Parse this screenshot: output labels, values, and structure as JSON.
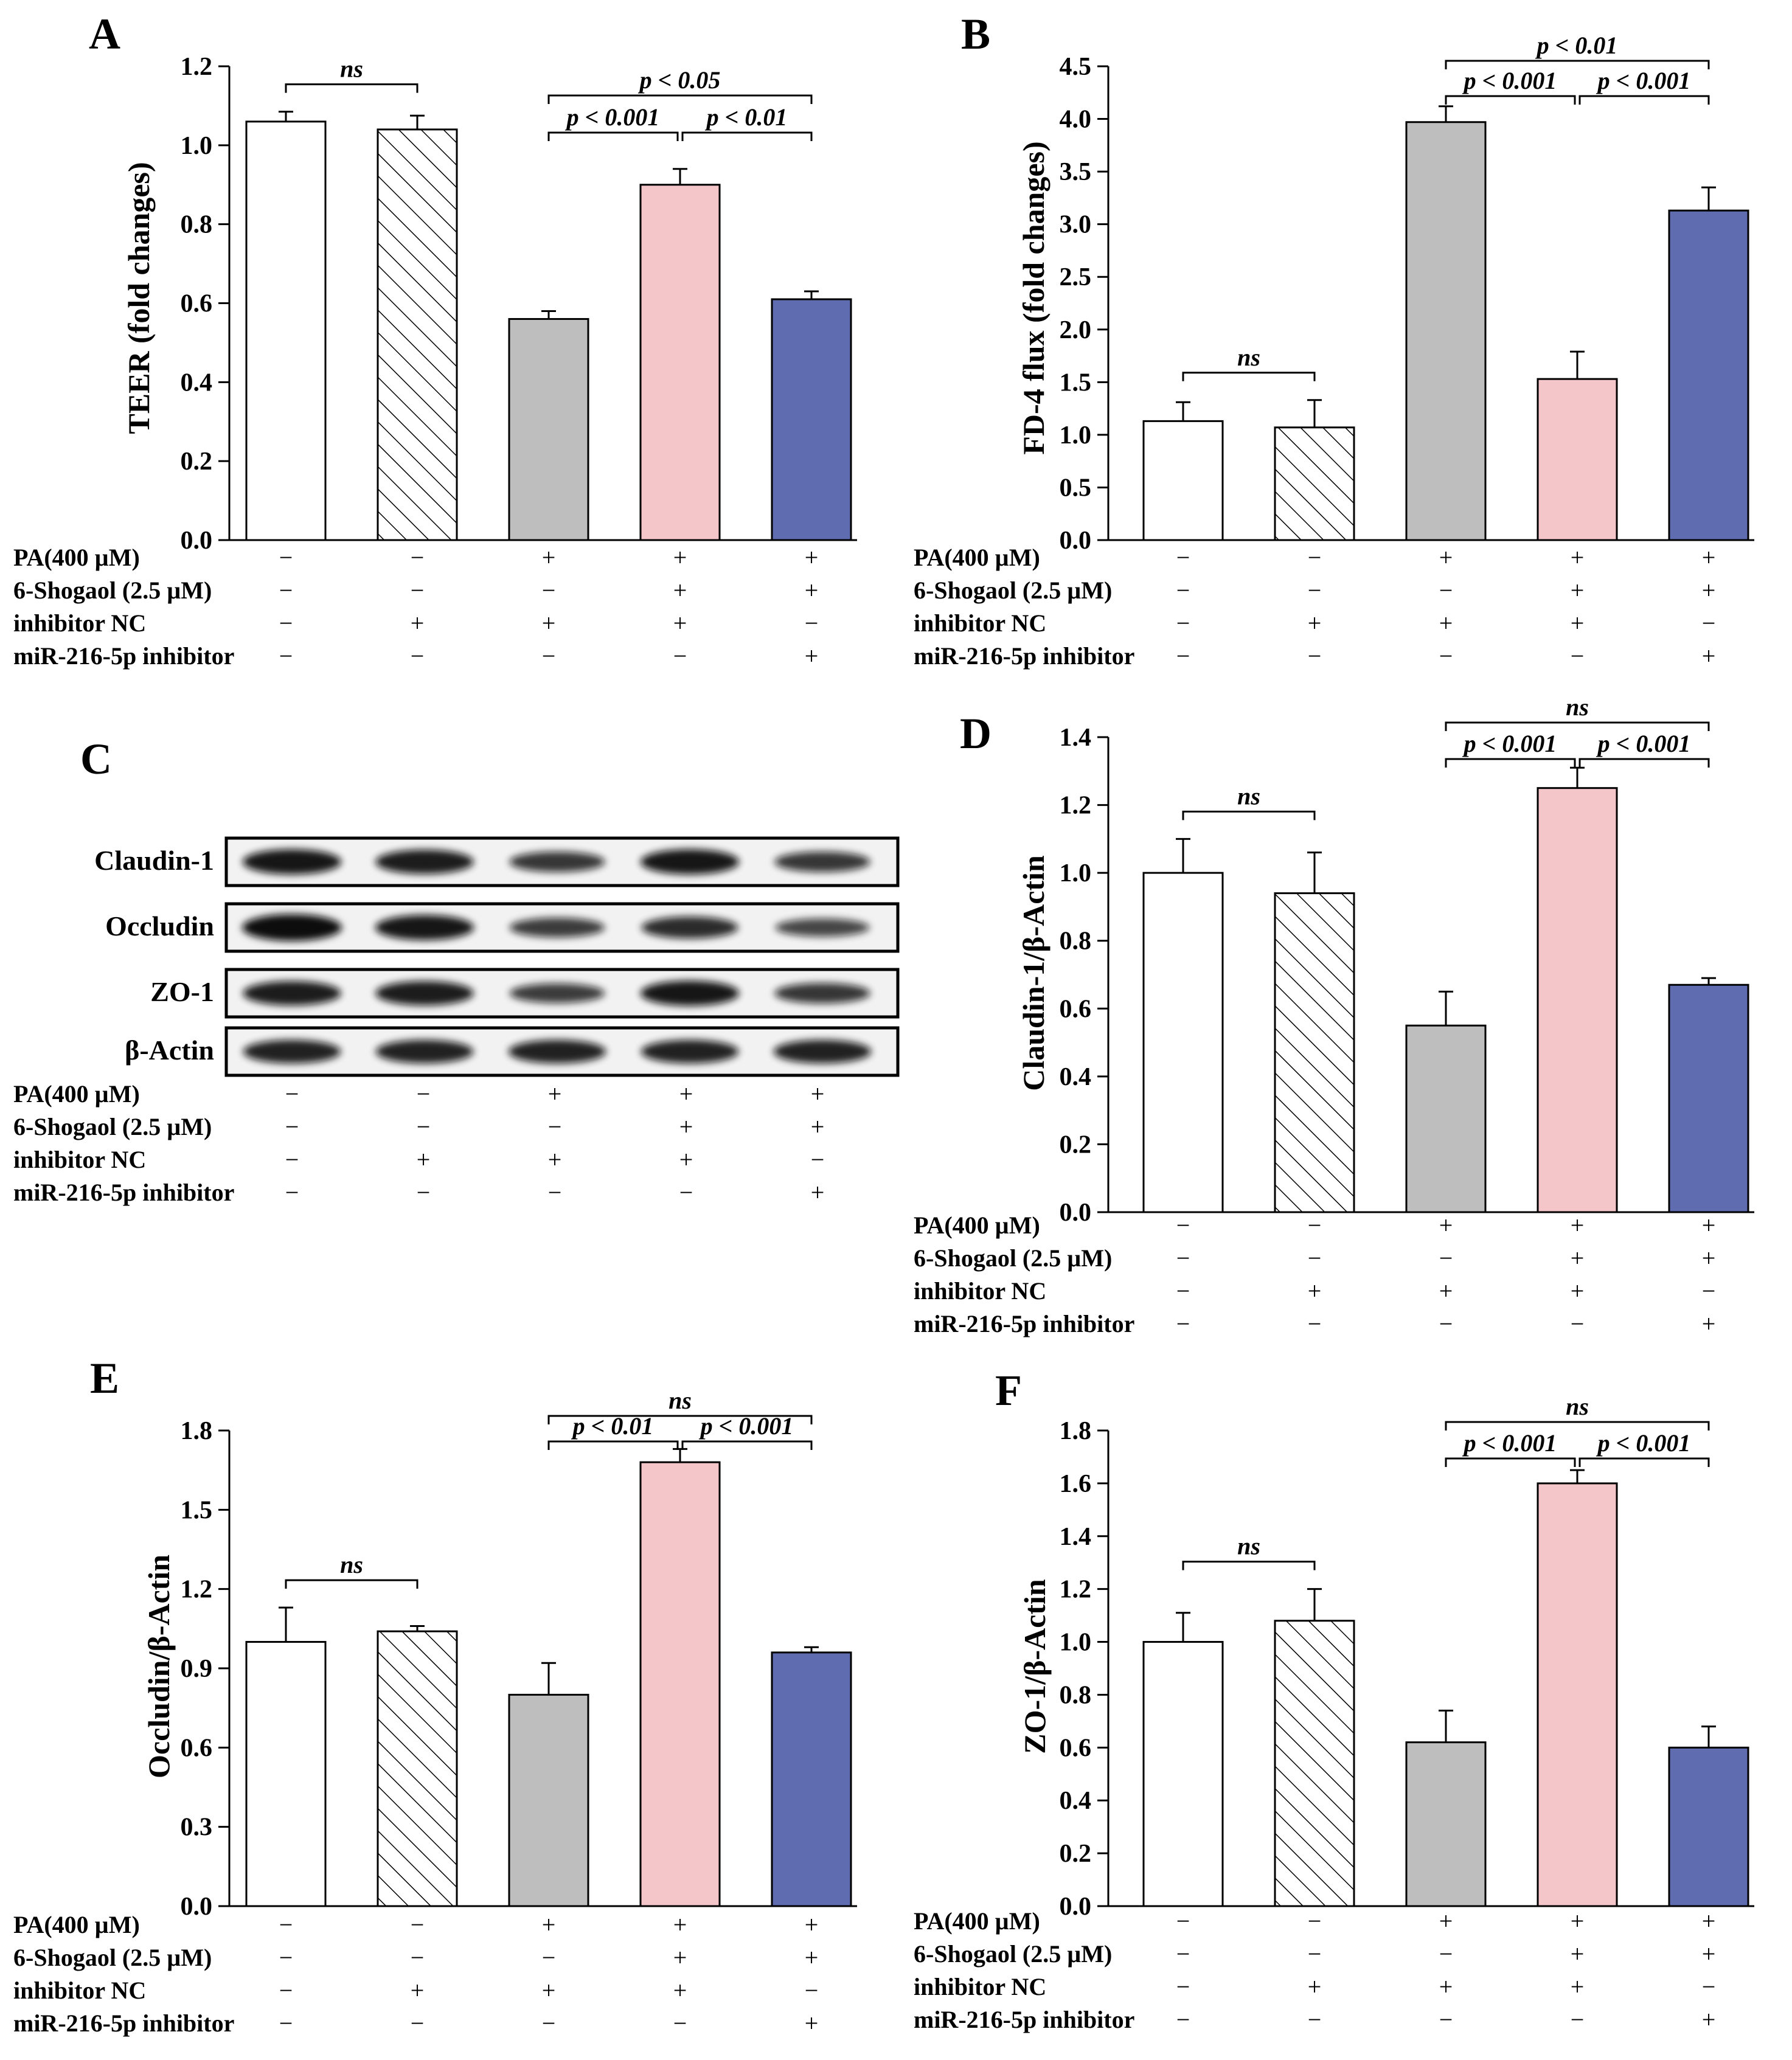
{
  "condition_rows": [
    "PA(400 µM)",
    "6-Shogaol (2.5 µM)",
    "inhibitor NC",
    "miR-216-5p inhibitor"
  ],
  "condition_signs": [
    [
      "−",
      "−",
      "+",
      "+",
      "+"
    ],
    [
      "−",
      "−",
      "−",
      "+",
      "+"
    ],
    [
      "−",
      "+",
      "+",
      "+",
      "−"
    ],
    [
      "−",
      "−",
      "−",
      "−",
      "+"
    ]
  ],
  "colors": {
    "control": "#ffffff",
    "inhibitor_nc": "#ffffff",
    "pa": "#bebebe",
    "shogaol": "#f4c5c9",
    "mir_inhibitor": "#5f6db0"
  },
  "blot": {
    "label": "C",
    "proteins": [
      "Claudin-1",
      "Occludin",
      "ZO-1",
      "β-Actin"
    ],
    "band_intensity": [
      [
        0.9,
        0.85,
        0.6,
        0.9,
        0.6
      ],
      [
        1.0,
        0.9,
        0.55,
        0.7,
        0.45
      ],
      [
        0.85,
        0.85,
        0.55,
        0.9,
        0.6
      ],
      [
        0.8,
        0.8,
        0.8,
        0.8,
        0.8
      ]
    ]
  },
  "chart_data": [
    {
      "panel": "A",
      "type": "bar",
      "ylabel": "TEER (fold changes)",
      "ylim": [
        0,
        1.2
      ],
      "yticks": [
        "0.0",
        "0.2",
        "0.4",
        "0.6",
        "0.8",
        "1.0",
        "1.2"
      ],
      "values": [
        1.06,
        1.04,
        0.56,
        0.9,
        0.61
      ],
      "errors": [
        0.025,
        0.035,
        0.02,
        0.04,
        0.02
      ],
      "annotations": [
        {
          "text": "ns",
          "from": 0,
          "to": 1,
          "level": 0
        },
        {
          "text": "p < 0.001",
          "from": 2,
          "to": 3,
          "level": 0
        },
        {
          "text": "p < 0.01",
          "from": 3,
          "to": 4,
          "level": 0
        },
        {
          "text": "p < 0.05",
          "from": 2,
          "to": 4,
          "level": 1
        }
      ]
    },
    {
      "panel": "B",
      "type": "bar",
      "ylabel": "FD-4 flux (fold changes)",
      "ylim": [
        0,
        4.5
      ],
      "yticks": [
        "0.0",
        "0.5",
        "1.0",
        "1.5",
        "2.0",
        "2.5",
        "3.0",
        "3.5",
        "4.0",
        "4.5"
      ],
      "values": [
        1.13,
        1.07,
        3.97,
        1.53,
        3.13
      ],
      "errors": [
        0.18,
        0.26,
        0.15,
        0.26,
        0.22
      ],
      "annotations": [
        {
          "text": "ns",
          "from": 0,
          "to": 1,
          "level": 0
        },
        {
          "text": "p < 0.001",
          "from": 2,
          "to": 3,
          "level": 0
        },
        {
          "text": "p < 0.001",
          "from": 3,
          "to": 4,
          "level": 0
        },
        {
          "text": "p < 0.01",
          "from": 2,
          "to": 4,
          "level": 1
        }
      ]
    },
    {
      "panel": "D",
      "type": "bar",
      "ylabel": "Claudin-1/β-Actin",
      "ylim": [
        0,
        1.4
      ],
      "yticks": [
        "0.0",
        "0.2",
        "0.4",
        "0.6",
        "0.8",
        "1.0",
        "1.2",
        "1.4"
      ],
      "values": [
        1.0,
        0.94,
        0.55,
        1.25,
        0.67
      ],
      "errors": [
        0.1,
        0.12,
        0.1,
        0.06,
        0.02
      ],
      "annotations": [
        {
          "text": "ns",
          "from": 0,
          "to": 1,
          "level": 0
        },
        {
          "text": "p < 0.001",
          "from": 2,
          "to": 3,
          "level": 0
        },
        {
          "text": "p < 0.001",
          "from": 3,
          "to": 4,
          "level": 0
        },
        {
          "text": "ns",
          "from": 2,
          "to": 4,
          "level": 1
        }
      ]
    },
    {
      "panel": "E",
      "type": "bar",
      "ylabel": "Occludin/β-Actin",
      "ylim": [
        0,
        1.8
      ],
      "yticks": [
        "0.0",
        "0.3",
        "0.6",
        "0.9",
        "1.2",
        "1.5",
        "1.8"
      ],
      "values": [
        1.0,
        1.04,
        0.8,
        1.68,
        0.96
      ],
      "errors": [
        0.13,
        0.02,
        0.12,
        0.05,
        0.02
      ],
      "annotations": [
        {
          "text": "ns",
          "from": 0,
          "to": 1,
          "level": 0
        },
        {
          "text": "p < 0.01",
          "from": 2,
          "to": 3,
          "level": 0
        },
        {
          "text": "p < 0.001",
          "from": 3,
          "to": 4,
          "level": 0
        },
        {
          "text": "ns",
          "from": 2,
          "to": 4,
          "level": 1
        }
      ]
    },
    {
      "panel": "F",
      "type": "bar",
      "ylabel": "ZO-1/β-Actin",
      "ylim": [
        0,
        1.8
      ],
      "yticks": [
        "0.0",
        "0.2",
        "0.4",
        "0.6",
        "0.8",
        "1.0",
        "1.2",
        "1.4",
        "1.6",
        "1.8"
      ],
      "values": [
        1.0,
        1.08,
        0.62,
        1.6,
        0.6
      ],
      "errors": [
        0.11,
        0.12,
        0.12,
        0.05,
        0.08
      ],
      "annotations": [
        {
          "text": "ns",
          "from": 0,
          "to": 1,
          "level": 0
        },
        {
          "text": "p < 0.001",
          "from": 2,
          "to": 3,
          "level": 0
        },
        {
          "text": "p < 0.001",
          "from": 3,
          "to": 4,
          "level": 0
        },
        {
          "text": "ns",
          "from": 2,
          "to": 4,
          "level": 1
        }
      ]
    }
  ]
}
